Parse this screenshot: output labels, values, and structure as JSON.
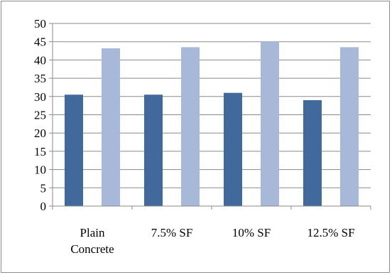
{
  "chart_data": {
    "type": "bar",
    "title": "",
    "xlabel": "",
    "ylabel": "",
    "categories": [
      [
        "Plain",
        "Concrete"
      ],
      [
        "7.5% SF"
      ],
      [
        "10% SF"
      ],
      [
        "12.5% SF"
      ]
    ],
    "series": [
      {
        "values": [
          30.5,
          30.5,
          31.0,
          29.0
        ],
        "color": "#41699B"
      },
      {
        "values": [
          43.2,
          43.5,
          45.0,
          43.5
        ],
        "color": "#A8B8D9"
      }
    ],
    "ylim": [
      0,
      50
    ],
    "yticks": [
      0,
      5,
      10,
      15,
      20,
      25,
      30,
      35,
      40,
      45,
      50
    ],
    "grid": true,
    "legend": "none"
  }
}
